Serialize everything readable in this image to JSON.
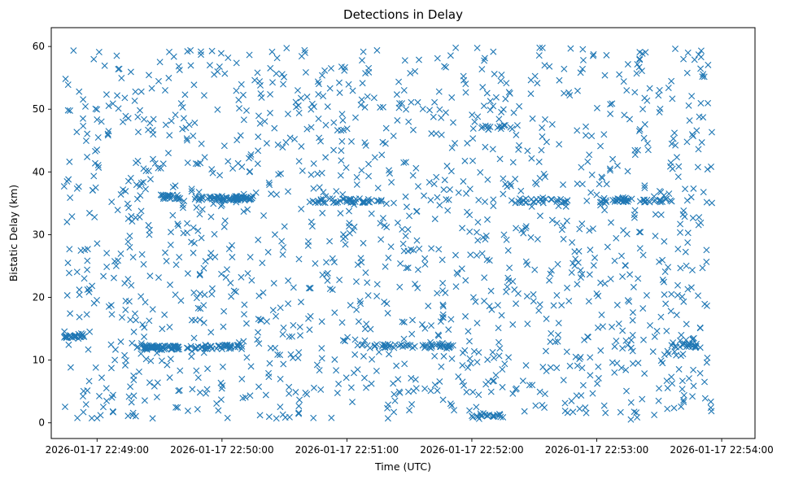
{
  "chart_data": {
    "type": "scatter",
    "title": "Detections in Delay",
    "xlabel": "Time (UTC)",
    "ylabel": "Bistatic Delay (km)",
    "marker": "x",
    "color": "#1f77b4",
    "x_unit": "seconds since 2026-01-17 22:49:00",
    "xlim": [
      -22,
      316
    ],
    "ylim": [
      -2.5,
      63
    ],
    "x_ticks": [
      {
        "value": 0,
        "label": "2026-01-17 22:49:00"
      },
      {
        "value": 60,
        "label": "2026-01-17 22:50:00"
      },
      {
        "value": 120,
        "label": "2026-01-17 22:51:00"
      },
      {
        "value": 180,
        "label": "2026-01-17 22:52:00"
      },
      {
        "value": 240,
        "label": "2026-01-17 22:53:00"
      },
      {
        "value": 300,
        "label": "2026-01-17 22:54:00"
      }
    ],
    "y_ticks": [
      {
        "value": 0,
        "label": "0"
      },
      {
        "value": 10,
        "label": "10"
      },
      {
        "value": 20,
        "label": "20"
      },
      {
        "value": 30,
        "label": "30"
      },
      {
        "value": 40,
        "label": "40"
      },
      {
        "value": 50,
        "label": "50"
      },
      {
        "value": 60,
        "label": "60"
      }
    ],
    "x_range": [
      -16,
      296
    ],
    "y_range": [
      0.5,
      59.8
    ],
    "approx_point_count": 1900,
    "random_seed": 20260117,
    "clusters": [
      {
        "x_start": -16,
        "x_end": -6,
        "y": 13.9,
        "count": 25
      },
      {
        "x_start": 19,
        "x_end": 40,
        "y": 12.0,
        "count": 55
      },
      {
        "x_start": 43,
        "x_end": 70,
        "y": 12.1,
        "count": 40
      },
      {
        "x_start": 31,
        "x_end": 40,
        "y": 36.0,
        "count": 20
      },
      {
        "x_start": 47,
        "x_end": 75,
        "y": 35.8,
        "count": 70
      },
      {
        "x_start": 102,
        "x_end": 137,
        "y": 35.4,
        "count": 45
      },
      {
        "x_start": 156,
        "x_end": 171,
        "y": 12.2,
        "count": 25
      },
      {
        "x_start": 180,
        "x_end": 198,
        "y": 1.2,
        "count": 20
      },
      {
        "x_start": 184,
        "x_end": 205,
        "y": 47.1,
        "count": 15
      },
      {
        "x_start": 199,
        "x_end": 226,
        "y": 35.4,
        "count": 30
      },
      {
        "x_start": 240,
        "x_end": 276,
        "y": 35.5,
        "count": 40
      },
      {
        "x_start": 274,
        "x_end": 290,
        "y": 12.3,
        "count": 20
      },
      {
        "x_start": 125,
        "x_end": 158,
        "y": 12.2,
        "count": 25
      }
    ]
  }
}
